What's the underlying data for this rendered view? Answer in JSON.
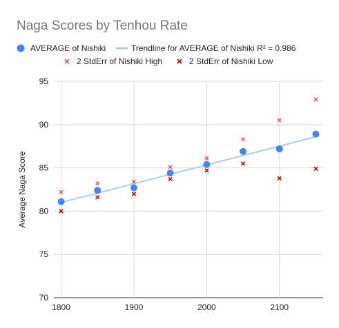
{
  "chart_data": {
    "type": "scatter",
    "title": "Naga Scores by Tenhou Rate",
    "xlabel": "",
    "ylabel": "Average Naga Score",
    "xlim": [
      1790,
      2160
    ],
    "ylim": [
      70,
      95
    ],
    "x_ticks": [
      "1800",
      "1900",
      "2000",
      "2100"
    ],
    "y_ticks": [
      "70",
      "75",
      "80",
      "85",
      "90",
      "95"
    ],
    "grid": true,
    "legend_position": "top",
    "x": [
      1800,
      1850,
      1900,
      1950,
      2000,
      2050,
      2100,
      2150
    ],
    "series": [
      {
        "name": "AVERAGE of Nishiki",
        "marker": "circle",
        "color": "#4285f4",
        "values": [
          81.1,
          82.4,
          82.7,
          84.4,
          85.4,
          86.9,
          87.2,
          88.9
        ]
      },
      {
        "name": "2 StdErr of Nishiki High",
        "marker": "x",
        "color": "#e53935",
        "values": [
          82.2,
          83.2,
          83.4,
          85.1,
          86.1,
          88.3,
          90.5,
          92.9
        ]
      },
      {
        "name": "2 StdErr of Nishiki Low",
        "marker": "x",
        "color": "#cc0000",
        "values": [
          80.0,
          81.6,
          82.0,
          83.7,
          84.7,
          85.5,
          83.8,
          84.9
        ]
      }
    ],
    "trendline": {
      "name": "Trendline for AVERAGE of Nishiki R² = 0.986",
      "color": "#aecbfa",
      "x": [
        1800,
        2150
      ],
      "y": [
        81.0,
        88.6
      ]
    }
  }
}
